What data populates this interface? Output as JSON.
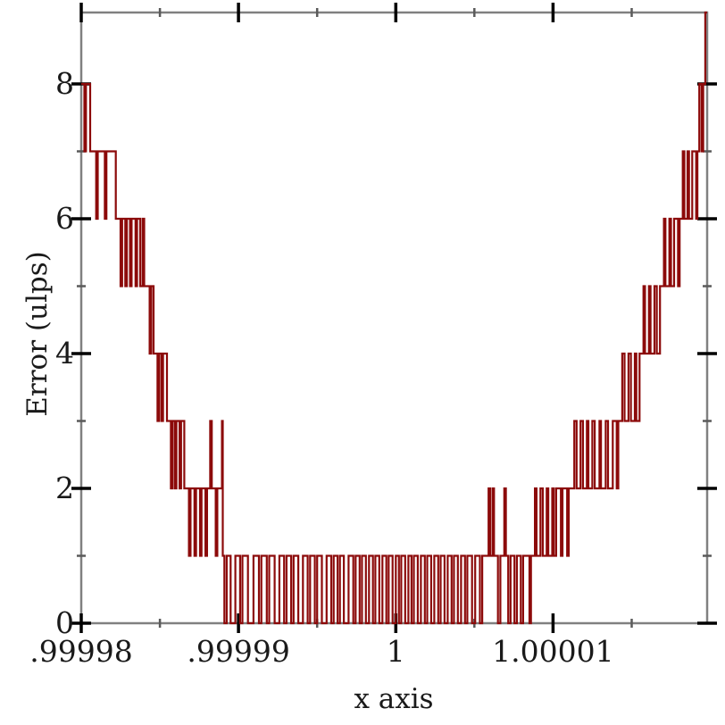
{
  "figure": {
    "background_color": "#ffffff",
    "description": "Floating-point error plot: noisy step line forming a V-shaped staircase of ulp error versus x near 1"
  },
  "chart_data": {
    "type": "line",
    "subtype": "step",
    "title": "",
    "xlabel": "x axis",
    "ylabel": "Error (ulps)",
    "x_range": [
      0.99998,
      1.0000198
    ],
    "y_range": [
      0,
      9.06
    ],
    "grid": false,
    "legend": "none",
    "line_color": "#8c0a0a",
    "axis_frame_color": "#808080",
    "major_tick_color": "#000000",
    "minor_tick_color": "#5a5a5a",
    "text_color": "#1a1a1a",
    "x_major_ticks": [
      {
        "value": 0.99998,
        "label": ".99998"
      },
      {
        "value": 0.99999,
        "label": ".99999"
      },
      {
        "value": 1.0,
        "label": "1"
      },
      {
        "value": 1.00001,
        "label": "1.00001"
      }
    ],
    "x_minor_ticks": [
      0.999985,
      0.999995,
      1.000005,
      1.000015
    ],
    "y_major_ticks": [
      {
        "value": 0,
        "label": "0"
      },
      {
        "value": 2,
        "label": "2"
      },
      {
        "value": 4,
        "label": "4"
      },
      {
        "value": 6,
        "label": "6"
      },
      {
        "value": 8,
        "label": "8"
      }
    ],
    "y_minor_ticks": [
      1,
      3,
      5,
      7
    ],
    "offset_formula": "x = 0.99998 + offset_micro * 1e-6 ; each entry is [offset_micro, new_error_level_ulps] of a step transition",
    "step_transitions": [
      [
        0,
        8
      ],
      [
        0.2,
        7
      ],
      [
        0.3,
        8
      ],
      [
        0.57,
        7
      ],
      [
        0.95,
        6
      ],
      [
        1.05,
        7
      ],
      [
        1.5,
        6
      ],
      [
        1.6,
        7
      ],
      [
        2.2,
        6
      ],
      [
        2.5,
        5
      ],
      [
        2.6,
        6
      ],
      [
        2.8,
        5
      ],
      [
        2.9,
        6
      ],
      [
        3.1,
        5
      ],
      [
        3.2,
        6
      ],
      [
        3.45,
        5
      ],
      [
        3.55,
        6
      ],
      [
        3.75,
        5
      ],
      [
        3.9,
        6
      ],
      [
        4.0,
        5
      ],
      [
        4.35,
        4
      ],
      [
        4.45,
        5
      ],
      [
        4.6,
        4
      ],
      [
        4.85,
        3
      ],
      [
        4.95,
        4
      ],
      [
        5.1,
        3
      ],
      [
        5.2,
        4
      ],
      [
        5.45,
        3
      ],
      [
        5.7,
        2
      ],
      [
        5.8,
        3
      ],
      [
        5.95,
        2
      ],
      [
        6.05,
        3
      ],
      [
        6.25,
        2
      ],
      [
        6.35,
        3
      ],
      [
        6.55,
        2
      ],
      [
        6.85,
        1
      ],
      [
        6.95,
        2
      ],
      [
        7.2,
        1
      ],
      [
        7.3,
        2
      ],
      [
        7.55,
        1
      ],
      [
        7.65,
        2
      ],
      [
        7.9,
        1
      ],
      [
        8.0,
        2
      ],
      [
        8.2,
        3
      ],
      [
        8.3,
        2
      ],
      [
        8.55,
        1
      ],
      [
        8.65,
        2
      ],
      [
        8.95,
        3
      ],
      [
        9.0,
        1
      ],
      [
        9.1,
        0
      ],
      [
        9.25,
        1
      ],
      [
        9.5,
        0
      ],
      [
        9.8,
        1
      ],
      [
        10.1,
        0
      ],
      [
        10.25,
        1
      ],
      [
        10.6,
        0
      ],
      [
        10.95,
        1
      ],
      [
        11.3,
        0
      ],
      [
        11.45,
        1
      ],
      [
        11.8,
        0
      ],
      [
        11.95,
        1
      ],
      [
        12.3,
        0
      ],
      [
        12.6,
        1
      ],
      [
        12.9,
        0
      ],
      [
        13.05,
        1
      ],
      [
        13.35,
        0
      ],
      [
        13.5,
        1
      ],
      [
        13.8,
        0
      ],
      [
        14.1,
        1
      ],
      [
        14.4,
        0
      ],
      [
        14.55,
        1
      ],
      [
        14.85,
        0
      ],
      [
        15.0,
        1
      ],
      [
        15.3,
        0
      ],
      [
        15.6,
        1
      ],
      [
        15.9,
        0
      ],
      [
        16.05,
        1
      ],
      [
        16.3,
        0
      ],
      [
        16.45,
        1
      ],
      [
        16.7,
        0
      ],
      [
        17.0,
        1
      ],
      [
        17.3,
        0
      ],
      [
        17.45,
        1
      ],
      [
        17.7,
        0
      ],
      [
        17.85,
        1
      ],
      [
        18.1,
        0
      ],
      [
        18.3,
        1
      ],
      [
        18.55,
        0
      ],
      [
        18.7,
        1
      ],
      [
        18.95,
        0
      ],
      [
        19.15,
        1
      ],
      [
        19.4,
        0
      ],
      [
        19.55,
        1
      ],
      [
        19.8,
        0
      ],
      [
        20.0,
        1
      ],
      [
        20.2,
        0
      ],
      [
        20.35,
        1
      ],
      [
        20.6,
        0
      ],
      [
        20.8,
        1
      ],
      [
        21.0,
        0
      ],
      [
        21.15,
        1
      ],
      [
        21.4,
        0
      ],
      [
        21.6,
        1
      ],
      [
        21.85,
        0
      ],
      [
        22.0,
        1
      ],
      [
        22.25,
        0
      ],
      [
        22.45,
        1
      ],
      [
        22.7,
        0
      ],
      [
        22.85,
        1
      ],
      [
        23.1,
        0
      ],
      [
        23.3,
        1
      ],
      [
        23.55,
        0
      ],
      [
        23.7,
        1
      ],
      [
        23.95,
        0
      ],
      [
        24.15,
        1
      ],
      [
        24.4,
        0
      ],
      [
        24.55,
        1
      ],
      [
        24.85,
        0
      ],
      [
        25.05,
        1
      ],
      [
        25.35,
        0
      ],
      [
        25.5,
        1
      ],
      [
        25.9,
        2
      ],
      [
        26.0,
        1
      ],
      [
        26.15,
        2
      ],
      [
        26.25,
        1
      ],
      [
        26.5,
        0
      ],
      [
        26.65,
        1
      ],
      [
        26.9,
        2
      ],
      [
        27.0,
        1
      ],
      [
        27.15,
        0
      ],
      [
        27.3,
        1
      ],
      [
        27.55,
        0
      ],
      [
        27.7,
        1
      ],
      [
        27.95,
        0
      ],
      [
        28.1,
        1
      ],
      [
        28.5,
        0
      ],
      [
        28.6,
        1
      ],
      [
        28.85,
        2
      ],
      [
        28.95,
        1
      ],
      [
        29.2,
        2
      ],
      [
        29.35,
        1
      ],
      [
        29.6,
        2
      ],
      [
        29.7,
        1
      ],
      [
        29.95,
        2
      ],
      [
        30.05,
        1
      ],
      [
        30.2,
        2
      ],
      [
        30.5,
        1
      ],
      [
        30.6,
        2
      ],
      [
        30.9,
        1
      ],
      [
        31.0,
        2
      ],
      [
        31.35,
        3
      ],
      [
        31.5,
        2
      ],
      [
        31.75,
        3
      ],
      [
        31.9,
        2
      ],
      [
        32.15,
        3
      ],
      [
        32.25,
        2
      ],
      [
        32.5,
        3
      ],
      [
        32.65,
        2
      ],
      [
        32.95,
        3
      ],
      [
        33.05,
        2
      ],
      [
        33.35,
        3
      ],
      [
        33.5,
        2
      ],
      [
        33.8,
        3
      ],
      [
        34.05,
        2
      ],
      [
        34.15,
        3
      ],
      [
        34.4,
        4
      ],
      [
        34.55,
        3
      ],
      [
        34.8,
        4
      ],
      [
        34.95,
        3
      ],
      [
        35.2,
        4
      ],
      [
        35.3,
        3
      ],
      [
        35.5,
        4
      ],
      [
        35.75,
        5
      ],
      [
        35.85,
        4
      ],
      [
        36.1,
        5
      ],
      [
        36.2,
        4
      ],
      [
        36.45,
        5
      ],
      [
        36.6,
        4
      ],
      [
        36.8,
        5
      ],
      [
        37.05,
        6
      ],
      [
        37.15,
        5
      ],
      [
        37.4,
        6
      ],
      [
        37.5,
        5
      ],
      [
        37.7,
        6
      ],
      [
        37.95,
        5
      ],
      [
        38.05,
        6
      ],
      [
        38.25,
        7
      ],
      [
        38.35,
        6
      ],
      [
        38.55,
        7
      ],
      [
        38.65,
        6
      ],
      [
        38.85,
        7
      ],
      [
        39.1,
        6
      ],
      [
        39.18,
        7
      ],
      [
        39.3,
        8
      ],
      [
        39.45,
        7
      ],
      [
        39.55,
        8
      ],
      [
        39.68,
        9.06
      ]
    ]
  }
}
